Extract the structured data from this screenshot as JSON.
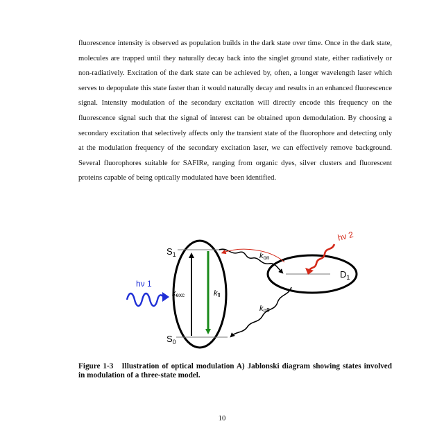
{
  "body_text": "fluorescence intensity is observed as population builds in the dark state over time. Once in the dark state, molecules are trapped until they naturally decay back into the singlet ground state, either radiatively or non-radiatively. Excitation of the dark state can be achieved by, often, a longer wavelength laser which serves to depopulate this state faster than it would naturally decay and results in an enhanced fluorescence signal. Intensity modulation of the secondary excitation will directly encode this frequency on the fluorescence signal such that the signal of interest can be obtained upon demodulation. By choosing a secondary excitation that selectively affects only the transient state of the fluorophore and detecting only at the modulation frequency of the secondary excitation laser, we can effectively remove background. Several fluorophores suitable for SAFIRe, ranging from organic dyes, silver clusters and fluorescent proteins capable of being optically modulated have been identified.",
  "figure": {
    "s1_base": "S",
    "s1_sub": "1",
    "s0_base": "S",
    "s0_sub": "0",
    "d1_base": "D",
    "d1_sub": "1",
    "kexc_base": "k",
    "kexc_sub": "exc",
    "kfl_base": "k",
    "kfl_sub": "fl",
    "kon_base": "k",
    "kon_sub": "on",
    "koff_base": "k",
    "koff_sub": "off",
    "hv1": "hν 1",
    "hv2": "hν 2",
    "colors": {
      "excitation_arrow": "#000000",
      "fluorescence_arrow": "#1a8a1a",
      "hv1_wave": "#1f2fd6",
      "hv2_wave": "#d42a1a"
    }
  },
  "caption_label": "Figure 1-3",
  "caption_text": "Illustration of optical modulation A) Jablonski diagram showing states involved in modulation of a three-state model.",
  "page_number": "10"
}
